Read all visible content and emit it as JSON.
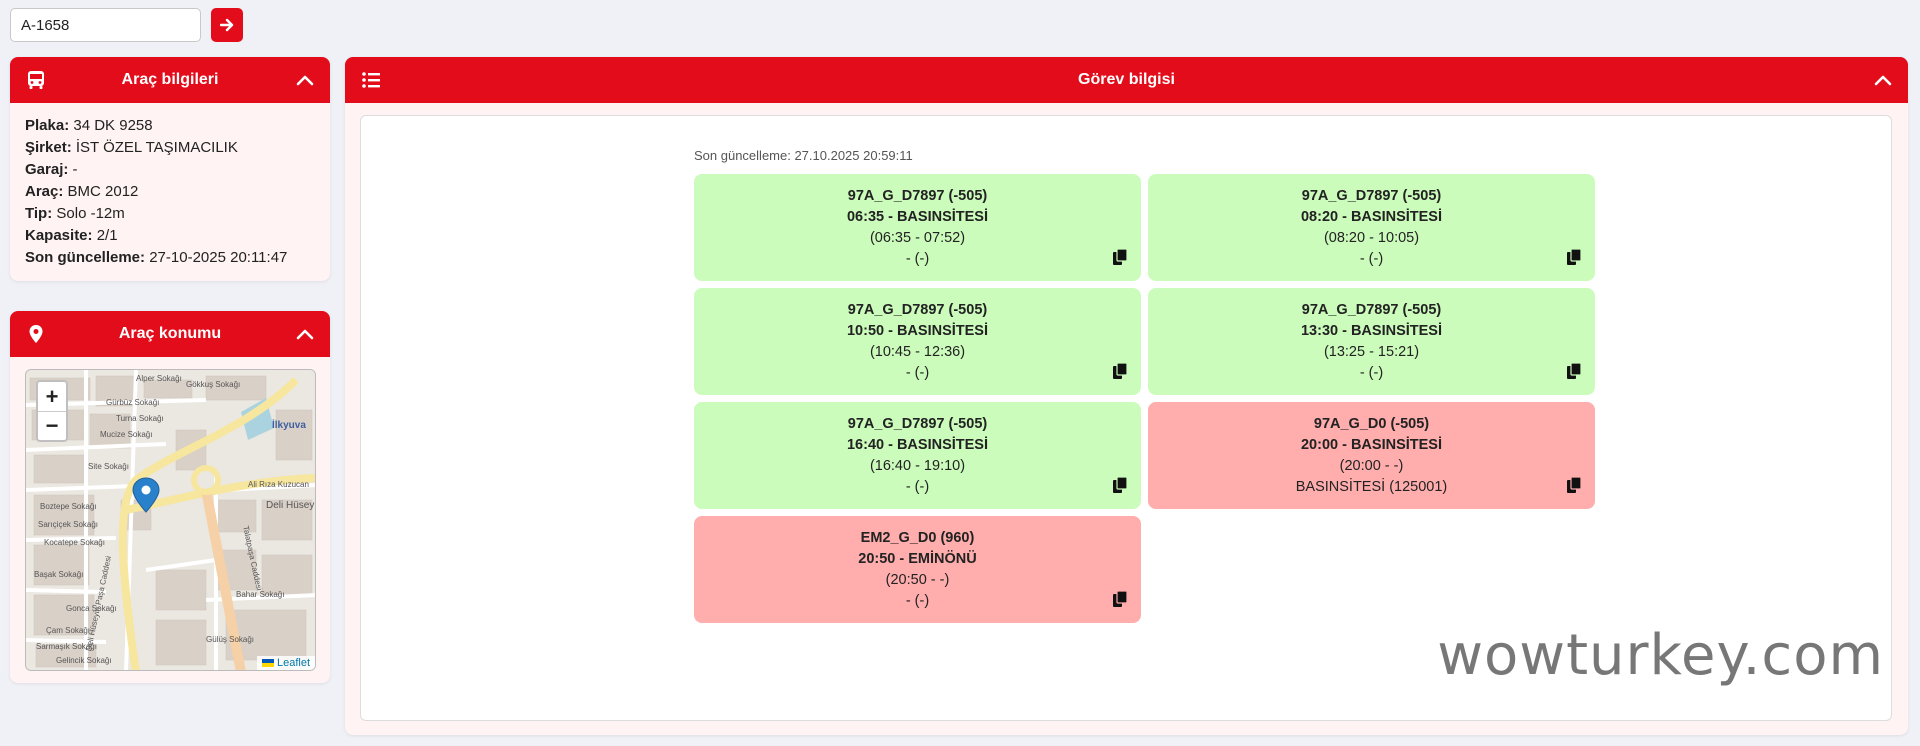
{
  "search": {
    "value": "A-1658"
  },
  "colors": {
    "accent": "#e30c1b",
    "card_active": "#ccfcbc",
    "card_inactive": "#ffadad"
  },
  "vehicle_info": {
    "title": "Araç bilgileri",
    "icon": "bus-icon",
    "rows": [
      {
        "label": "Plaka:",
        "value": "34 DK 9258"
      },
      {
        "label": "Şirket:",
        "value": "İST ÖZEL TAŞIMACILIK"
      },
      {
        "label": "Garaj:",
        "value": "-"
      },
      {
        "label": "Araç:",
        "value": "BMC 2012"
      },
      {
        "label": "Tip:",
        "value": "Solo -12m"
      },
      {
        "label": "Kapasite:",
        "value": "2/1"
      },
      {
        "label": "Son güncelleme:",
        "value": "27-10-2025 20:11:47"
      }
    ]
  },
  "vehicle_location": {
    "title": "Araç konumu",
    "icon": "map-pin-icon",
    "zoom_in": "+",
    "zoom_out": "−",
    "attribution": "Leaflet",
    "streets": [
      "Alper Sokağı",
      "Gökkuş Sokağı",
      "Gürbüz Sokağı",
      "Turna Sokağı",
      "Mucize Sokağı",
      "Site Sokağı",
      "Boztepe Sokağı",
      "Sarıçiçek Sokağı",
      "Kocatepe Sokağı",
      "Başak Sokağı",
      "Gonca Sokağı",
      "Çam Sokağı",
      "Sarmaşık Sokağı",
      "Gelincik Sokağı",
      "İlkyuva",
      "Deli Hüseyin Paşa Caddesi",
      "Talatpaşa Caddesi",
      "Ali Rıza Kuzucan",
      "Deli Hüsey",
      "Bahar Sokağı",
      "Gülüş Sokağı"
    ]
  },
  "task_info": {
    "title": "Görev bilgisi",
    "icon": "list-icon",
    "updated": "Son güncelleme: 27.10.2025 20:59:11",
    "cards": [
      {
        "status": "green",
        "line": "97A_G_D7897 (-505)",
        "trip": "06:35 - BASINSİTESİ",
        "window": "(06:35 - 07:52)",
        "extra": "- (-)"
      },
      {
        "status": "green",
        "line": "97A_G_D7897 (-505)",
        "trip": "08:20 - BASINSİTESİ",
        "window": "(08:20 - 10:05)",
        "extra": "- (-)"
      },
      {
        "status": "green",
        "line": "97A_G_D7897 (-505)",
        "trip": "10:50 - BASINSİTESİ",
        "window": "(10:45 - 12:36)",
        "extra": "- (-)"
      },
      {
        "status": "green",
        "line": "97A_G_D7897 (-505)",
        "trip": "13:30 - BASINSİTESİ",
        "window": "(13:25 - 15:21)",
        "extra": "- (-)"
      },
      {
        "status": "green",
        "line": "97A_G_D7897 (-505)",
        "trip": "16:40 - BASINSİTESİ",
        "window": "(16:40 - 19:10)",
        "extra": "- (-)"
      },
      {
        "status": "red",
        "line": "97A_G_D0 (-505)",
        "trip": "20:00 - BASINSİTESİ",
        "window": "(20:00 - -)",
        "extra": "BASINSİTESİ (125001)"
      },
      {
        "status": "red",
        "line": "EM2_G_D0 (960)",
        "trip": "20:50 - EMİNÖNÜ",
        "window": "(20:50 - -)",
        "extra": "- (-)"
      }
    ]
  },
  "watermark": "wowturkey.com"
}
